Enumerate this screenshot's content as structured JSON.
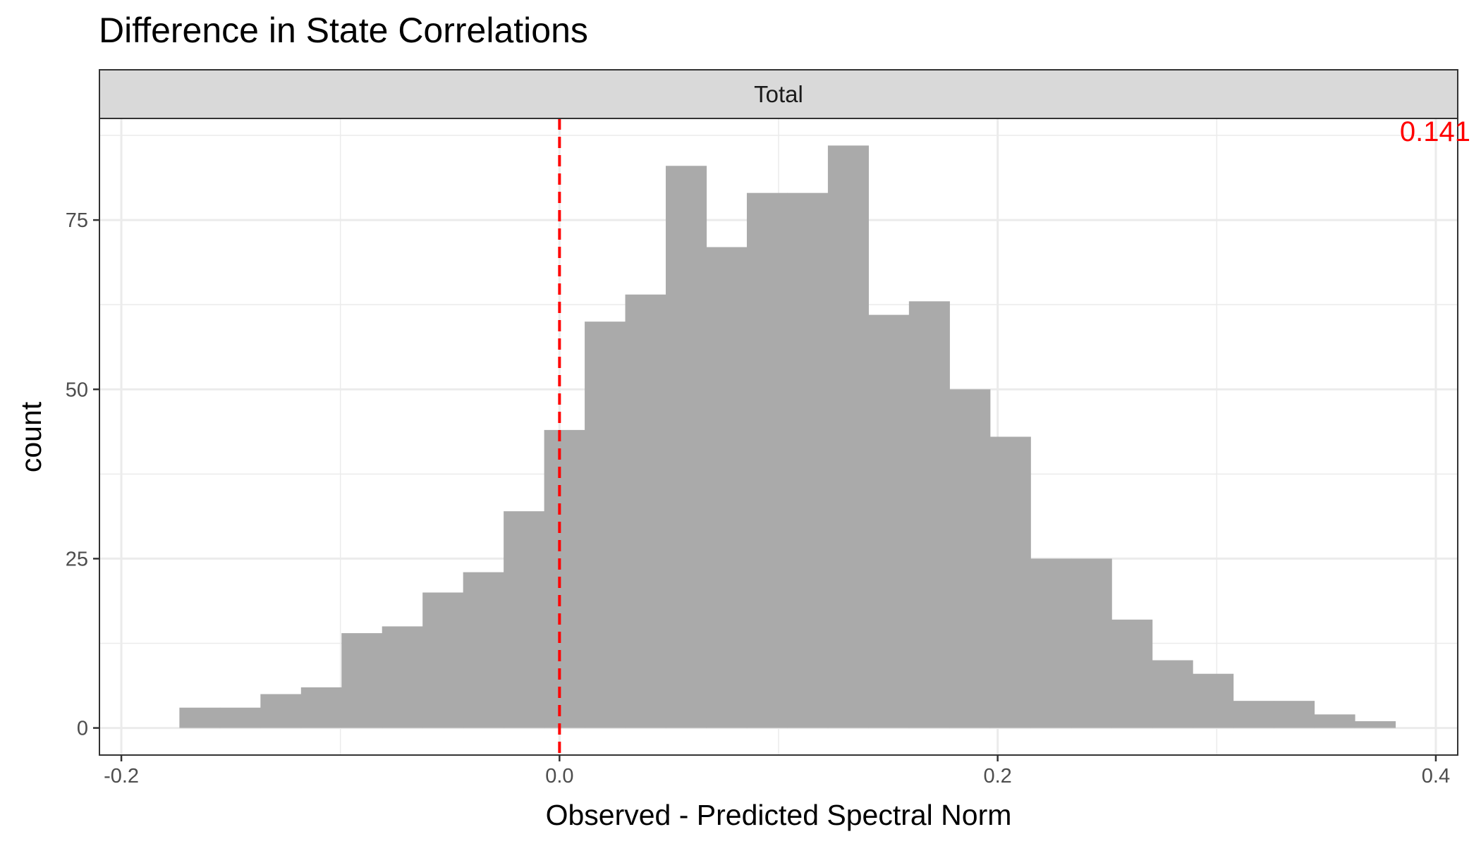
{
  "chart_data": {
    "type": "bar",
    "title": "Difference in State Correlations",
    "facet_label": "Total",
    "xlabel": "Observed - Predicted Spectral Norm",
    "ylabel": "count",
    "xlim": [
      -0.21,
      0.41
    ],
    "ylim": [
      -4,
      90
    ],
    "x_ticks": [
      {
        "value": -0.2,
        "label": "-0.2"
      },
      {
        "value": 0.0,
        "label": "0.0"
      },
      {
        "value": 0.2,
        "label": "0.2"
      },
      {
        "value": 0.4,
        "label": "0.4"
      }
    ],
    "y_ticks": [
      {
        "value": 0,
        "label": "0"
      },
      {
        "value": 25,
        "label": "25"
      },
      {
        "value": 50,
        "label": "50"
      },
      {
        "value": 75,
        "label": "75"
      }
    ],
    "grid": true,
    "bin_width": 0.0185,
    "bins": [
      {
        "x0": -0.1735,
        "x1": -0.155,
        "count": 3
      },
      {
        "x0": -0.155,
        "x1": -0.1365,
        "count": 3
      },
      {
        "x0": -0.1365,
        "x1": -0.118,
        "count": 5
      },
      {
        "x0": -0.118,
        "x1": -0.0995,
        "count": 6
      },
      {
        "x0": -0.0995,
        "x1": -0.081,
        "count": 14
      },
      {
        "x0": -0.081,
        "x1": -0.0625,
        "count": 15
      },
      {
        "x0": -0.0625,
        "x1": -0.044,
        "count": 20
      },
      {
        "x0": -0.044,
        "x1": -0.0255,
        "count": 23
      },
      {
        "x0": -0.0255,
        "x1": -0.007,
        "count": 32
      },
      {
        "x0": -0.007,
        "x1": 0.0115,
        "count": 44
      },
      {
        "x0": 0.0115,
        "x1": 0.03,
        "count": 60
      },
      {
        "x0": 0.03,
        "x1": 0.0485,
        "count": 64
      },
      {
        "x0": 0.0485,
        "x1": 0.067,
        "count": 83
      },
      {
        "x0": 0.067,
        "x1": 0.0855,
        "count": 71
      },
      {
        "x0": 0.0855,
        "x1": 0.104,
        "count": 79
      },
      {
        "x0": 0.104,
        "x1": 0.1225,
        "count": 79
      },
      {
        "x0": 0.1225,
        "x1": 0.141,
        "count": 86
      },
      {
        "x0": 0.141,
        "x1": 0.1595,
        "count": 61
      },
      {
        "x0": 0.1595,
        "x1": 0.178,
        "count": 63
      },
      {
        "x0": 0.178,
        "x1": 0.1965,
        "count": 50
      },
      {
        "x0": 0.1965,
        "x1": 0.215,
        "count": 43
      },
      {
        "x0": 0.215,
        "x1": 0.2335,
        "count": 25
      },
      {
        "x0": 0.2335,
        "x1": 0.252,
        "count": 25
      },
      {
        "x0": 0.252,
        "x1": 0.2705,
        "count": 16
      },
      {
        "x0": 0.2705,
        "x1": 0.289,
        "count": 10
      },
      {
        "x0": 0.289,
        "x1": 0.3075,
        "count": 8
      },
      {
        "x0": 0.3075,
        "x1": 0.326,
        "count": 4
      },
      {
        "x0": 0.326,
        "x1": 0.3445,
        "count": 4
      },
      {
        "x0": 0.3445,
        "x1": 0.363,
        "count": 2
      },
      {
        "x0": 0.363,
        "x1": 0.3815,
        "count": 1
      }
    ],
    "reference_line": {
      "x": 0.0,
      "color": "#ff0000",
      "style": "dashed"
    },
    "annotation": {
      "text": "0.141",
      "color": "#ff0000",
      "placement": "top-right"
    },
    "colors": {
      "bars": "#aaaaaa",
      "strip": "#d9d9d9",
      "grid": "#ebebeb",
      "panel_border": "#333333"
    }
  }
}
